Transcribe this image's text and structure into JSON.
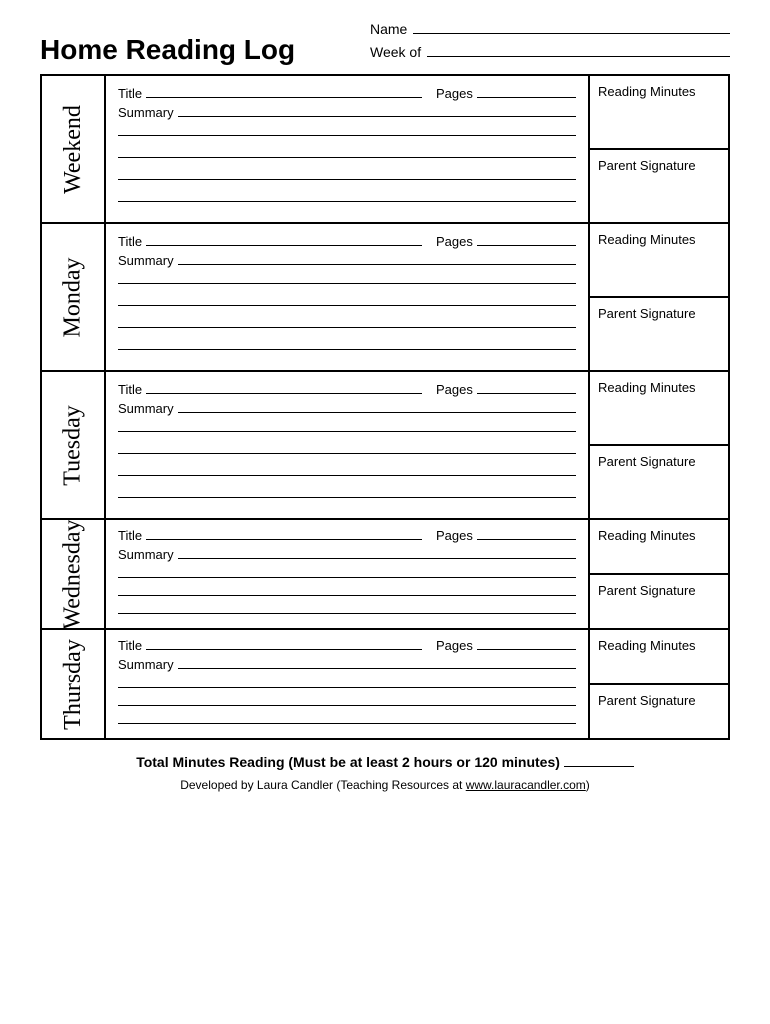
{
  "header": {
    "name_label": "Name",
    "title": "Home Reading Log",
    "week_label": "Week of"
  },
  "row_labels": {
    "title": "Title",
    "pages": "Pages",
    "summary": "Summary",
    "reading_minutes": "Reading Minutes",
    "parent_signature": "Parent Signature"
  },
  "days": [
    "Weekend",
    "Monday",
    "Tuesday",
    "Wednesday",
    "Thursday"
  ],
  "footer": {
    "total": "Total Minutes Reading (Must be at least 2 hours or 120 minutes)",
    "credit": "Developed by Laura Candler (Teaching Resources at ",
    "credit_url": "www.lauracandler.com",
    "credit_close": ")"
  },
  "colors": {
    "text": "#000000",
    "background": "#ffffff",
    "border": "#000000"
  },
  "structure": {
    "type": "table",
    "days_count": 5,
    "compact_rows": [
      3,
      4
    ],
    "summary_lines_normal": 4,
    "summary_lines_compact": 3
  }
}
